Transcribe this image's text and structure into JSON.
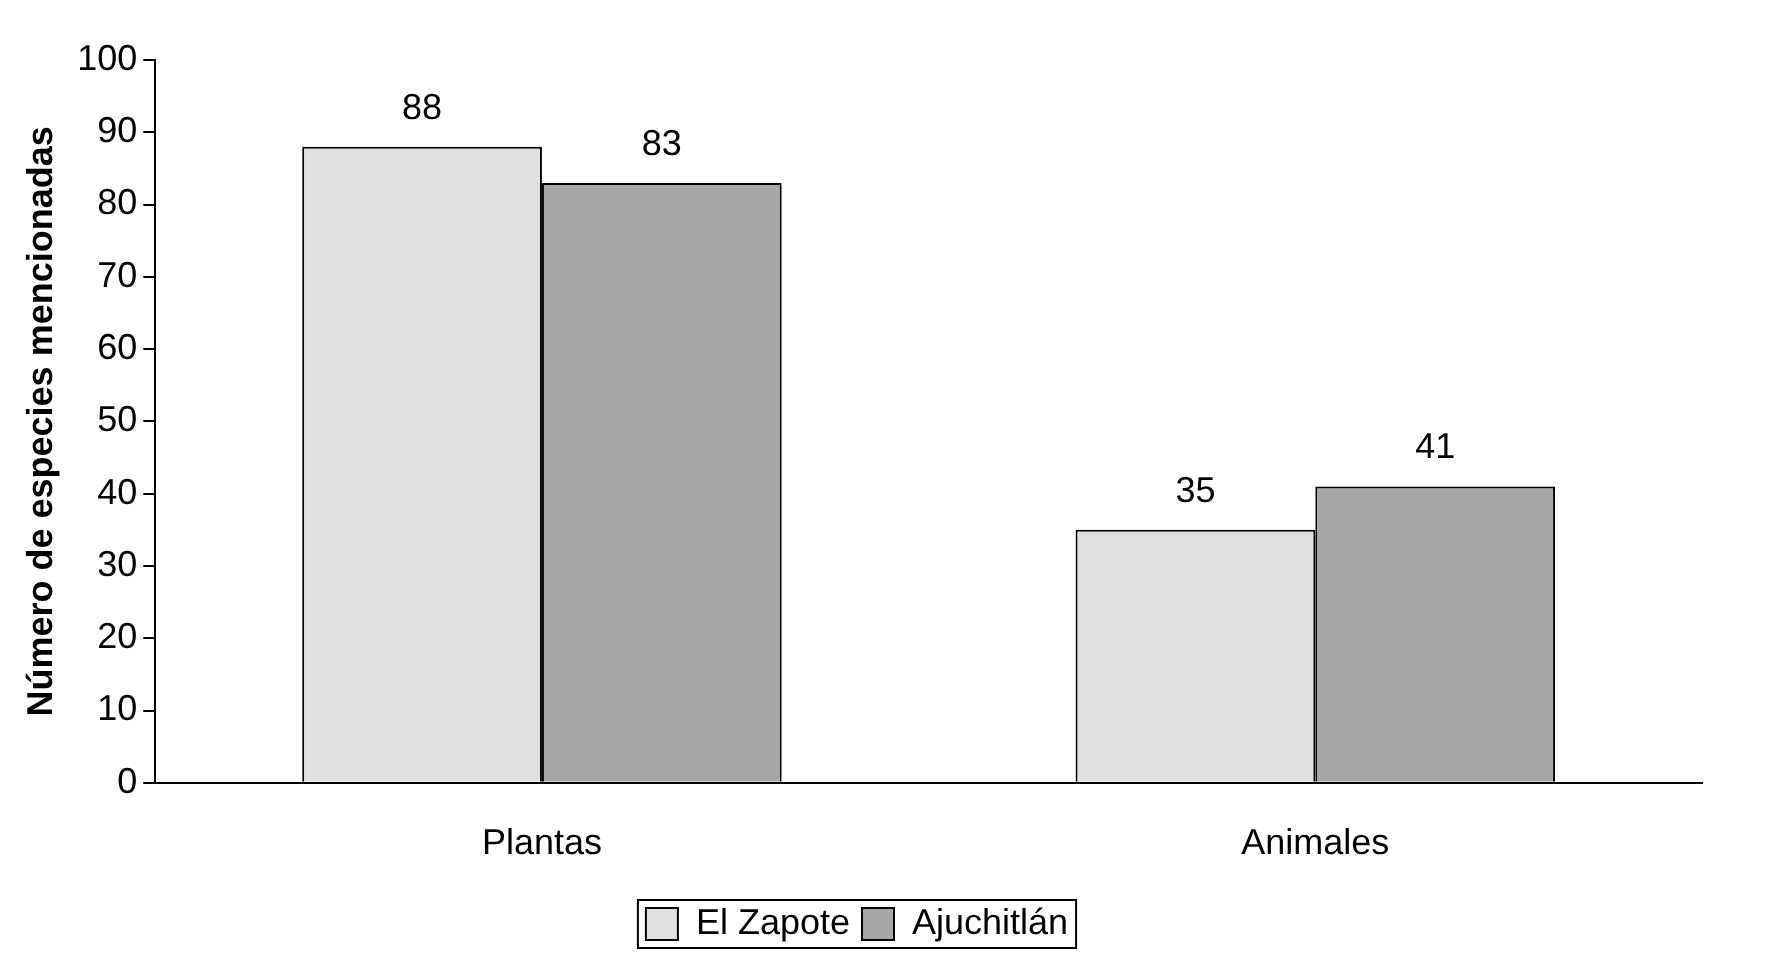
{
  "chart_data": {
    "type": "bar",
    "ylabel": "Número de especies mencionadas",
    "categories": [
      "Plantas",
      "Animales"
    ],
    "series": [
      {
        "name": "El Zapote",
        "color": "#e0e0e0",
        "values": [
          88,
          35
        ]
      },
      {
        "name": "Ajuchitlán",
        "color": "#a6a6a6",
        "values": [
          83,
          41
        ]
      }
    ],
    "ylim": [
      0,
      100
    ],
    "yticks": [
      0,
      10,
      20,
      30,
      40,
      50,
      60,
      70,
      80,
      90,
      100
    ],
    "grid": false,
    "legend": "bottom",
    "data_labels": true
  }
}
